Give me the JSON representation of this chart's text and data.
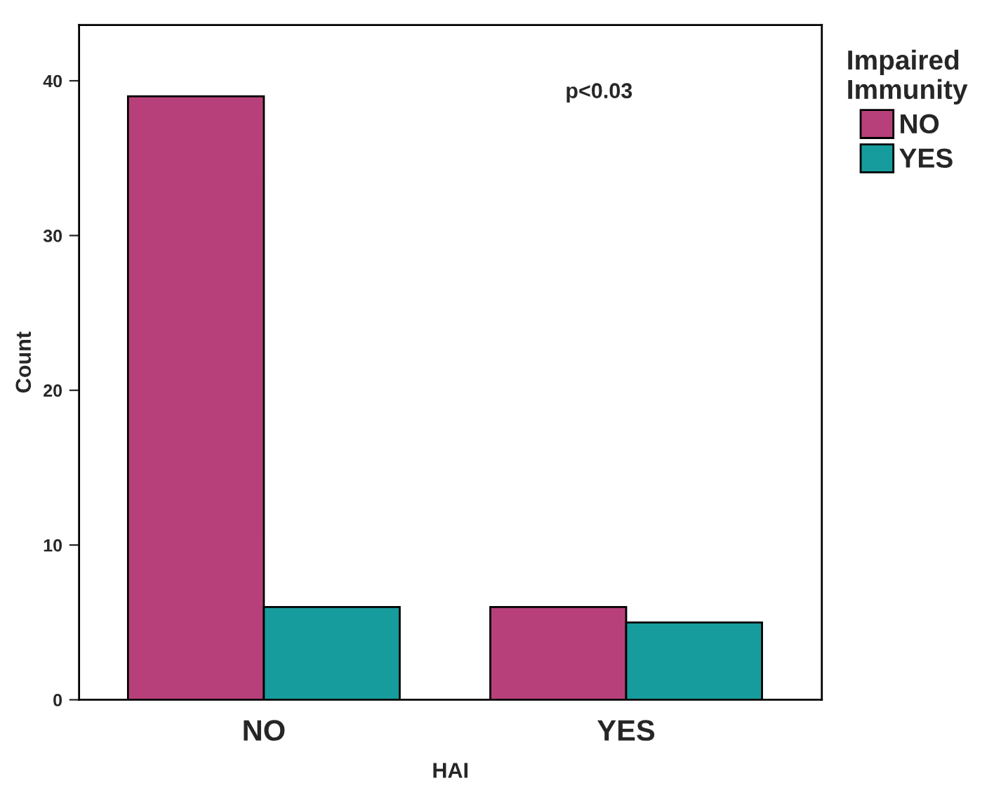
{
  "chart_data": {
    "type": "bar",
    "xlabel": "HAI",
    "ylabel": "Count",
    "legend_title": "Impaired\nImmunity",
    "categories": [
      "NO",
      "YES"
    ],
    "series": [
      {
        "name": "NO",
        "color": "#b8407a",
        "values": [
          39,
          6
        ]
      },
      {
        "name": "YES",
        "color": "#169c9c",
        "values": [
          6,
          5
        ]
      }
    ],
    "ylim": [
      0,
      43.6
    ],
    "yticks": [
      0,
      10,
      20,
      30,
      40
    ],
    "grid": false,
    "legend": "right",
    "annotations": [
      "p<0.03"
    ]
  }
}
